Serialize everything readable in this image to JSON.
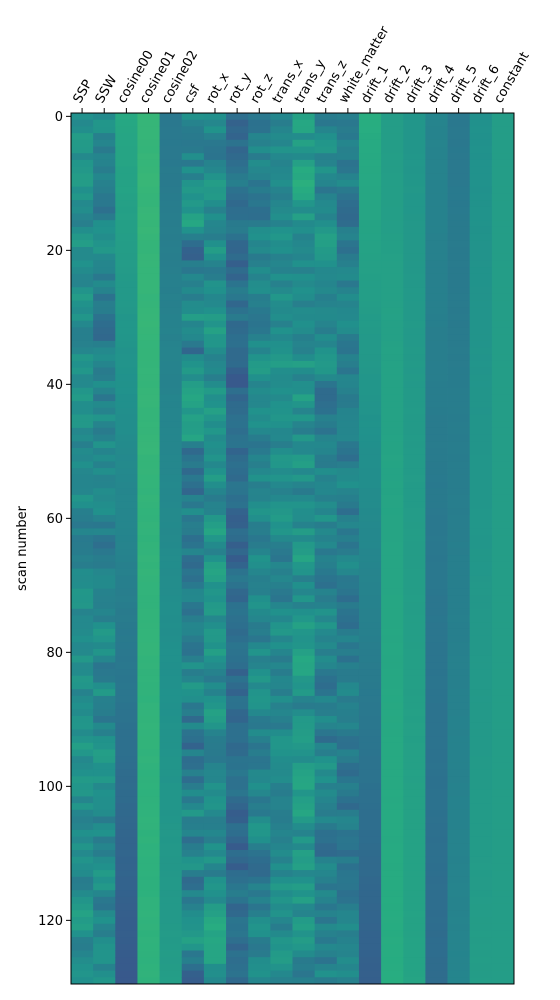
{
  "chart_data": {
    "type": "heatmap",
    "title": "",
    "xlabel": "",
    "ylabel": "scan number",
    "columns": [
      "SSP",
      "SSW",
      "cosine00",
      "cosine01",
      "cosine02",
      "csf",
      "rot_x",
      "rot_y",
      "rot_z",
      "trans_x",
      "trans_y",
      "trans_z",
      "white_matter",
      "drift_1",
      "drift_2",
      "drift_3",
      "drift_4",
      "drift_5",
      "drift_6",
      "constant"
    ],
    "n_rows": 130,
    "ylim": [
      129.5,
      -0.5
    ],
    "yticks": [
      0,
      20,
      40,
      60,
      80,
      100,
      120
    ],
    "colormap": [
      "#440154",
      "#472d7b",
      "#3b528b",
      "#2c728e",
      "#21918c",
      "#28ae80",
      "#5ec962",
      "#addc30",
      "#fde725"
    ],
    "value_range": [
      0,
      1
    ],
    "column_profiles": [
      {
        "name": "SSP",
        "base": 0.48,
        "var": 0.14
      },
      {
        "name": "SSW",
        "base": 0.45,
        "var": 0.16
      },
      {
        "name": "cosine00",
        "base_start": 0.6,
        "base_end": 0.28,
        "var": 0.01
      },
      {
        "name": "cosine01",
        "base_start": 0.66,
        "base_end": 0.64,
        "var": 0.01
      },
      {
        "name": "cosine02",
        "base_start": 0.4,
        "base_end": 0.55,
        "var": 0.01
      },
      {
        "name": "csf",
        "base": 0.45,
        "var": 0.22
      },
      {
        "name": "rot_x",
        "base": 0.5,
        "var": 0.15
      },
      {
        "name": "rot_y",
        "base": 0.35,
        "var": 0.12
      },
      {
        "name": "rot_z",
        "base": 0.45,
        "var": 0.14
      },
      {
        "name": "trans_x",
        "base": 0.48,
        "var": 0.12
      },
      {
        "name": "trans_y",
        "base": 0.5,
        "var": 0.18
      },
      {
        "name": "trans_z",
        "base": 0.45,
        "var": 0.16
      },
      {
        "name": "white_matter",
        "base": 0.42,
        "var": 0.12
      },
      {
        "name": "drift_1",
        "base_start": 0.62,
        "base_end": 0.3,
        "var": 0.005
      },
      {
        "name": "drift_2",
        "base_start": 0.55,
        "base_end": 0.62,
        "var": 0.005
      },
      {
        "name": "drift_3",
        "base_start": 0.52,
        "base_end": 0.58,
        "var": 0.005
      },
      {
        "name": "drift_4",
        "base_start": 0.45,
        "base_end": 0.35,
        "var": 0.005
      },
      {
        "name": "drift_5",
        "base_start": 0.4,
        "base_end": 0.45,
        "var": 0.005
      },
      {
        "name": "drift_6",
        "base_start": 0.5,
        "base_end": 0.55,
        "var": 0.005
      },
      {
        "name": "constant",
        "base": 0.55,
        "var": 0.0
      }
    ]
  }
}
